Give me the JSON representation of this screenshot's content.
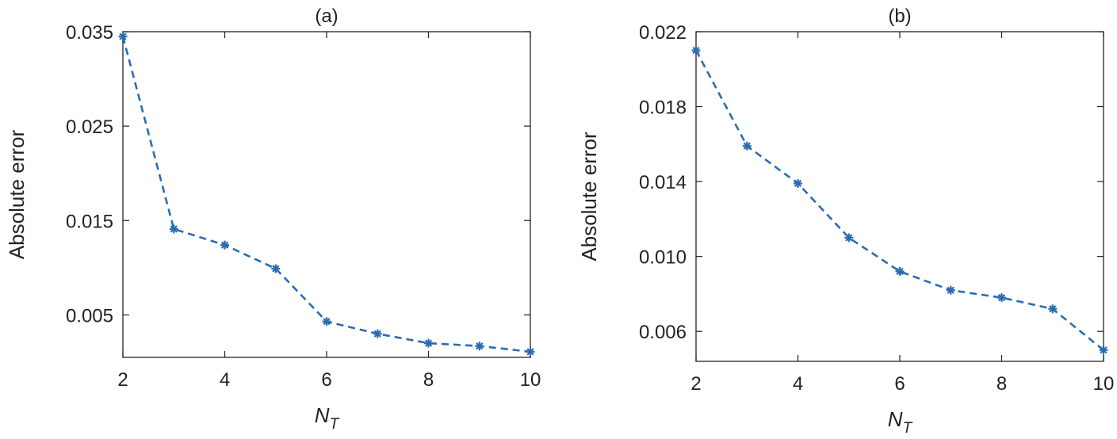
{
  "colors": {
    "series": "#2a6cb3",
    "axes": "#222222",
    "background": "#ffffff"
  },
  "chart_data": [
    {
      "type": "line",
      "title": "(a)",
      "xlabel_base": "N",
      "xlabel_sub": "T",
      "ylabel": "Absolute error",
      "x": [
        2,
        3,
        4,
        5,
        6,
        7,
        8,
        9,
        10
      ],
      "series": [
        {
          "values": [
            0.0345,
            0.0141,
            0.0124,
            0.0099,
            0.0043,
            0.003,
            0.002,
            0.0017,
            0.0011
          ],
          "line_style": "dashed",
          "marker": "asterisk"
        }
      ],
      "xlim": [
        2,
        10
      ],
      "ylim": [
        0.0005,
        0.035
      ],
      "xticks": [
        2,
        4,
        6,
        8,
        10
      ],
      "xtick_labels": [
        "2",
        "4",
        "6",
        "8",
        "10"
      ],
      "yticks": [
        0.005,
        0.015,
        0.025,
        0.035
      ],
      "ytick_labels": [
        "0.005",
        "0.015",
        "0.025",
        "0.035"
      ],
      "grid": false
    },
    {
      "type": "line",
      "title": "(b)",
      "xlabel_base": "N",
      "xlabel_sub": "T",
      "ylabel": "Absolute error",
      "x": [
        2,
        3,
        4,
        5,
        6,
        7,
        8,
        9,
        10
      ],
      "series": [
        {
          "values": [
            0.021,
            0.0159,
            0.0139,
            0.011,
            0.0092,
            0.0082,
            0.0078,
            0.0072,
            0.005
          ],
          "line_style": "dashed",
          "marker": "asterisk"
        }
      ],
      "xlim": [
        2,
        10
      ],
      "ylim": [
        0.0044,
        0.022
      ],
      "xticks": [
        2,
        4,
        6,
        8,
        10
      ],
      "xtick_labels": [
        "2",
        "4",
        "6",
        "8",
        "10"
      ],
      "yticks": [
        0.006,
        0.01,
        0.014,
        0.018,
        0.022
      ],
      "ytick_labels": [
        "0.006",
        "0.010",
        "0.014",
        "0.018",
        "0.022"
      ],
      "grid": false
    }
  ]
}
